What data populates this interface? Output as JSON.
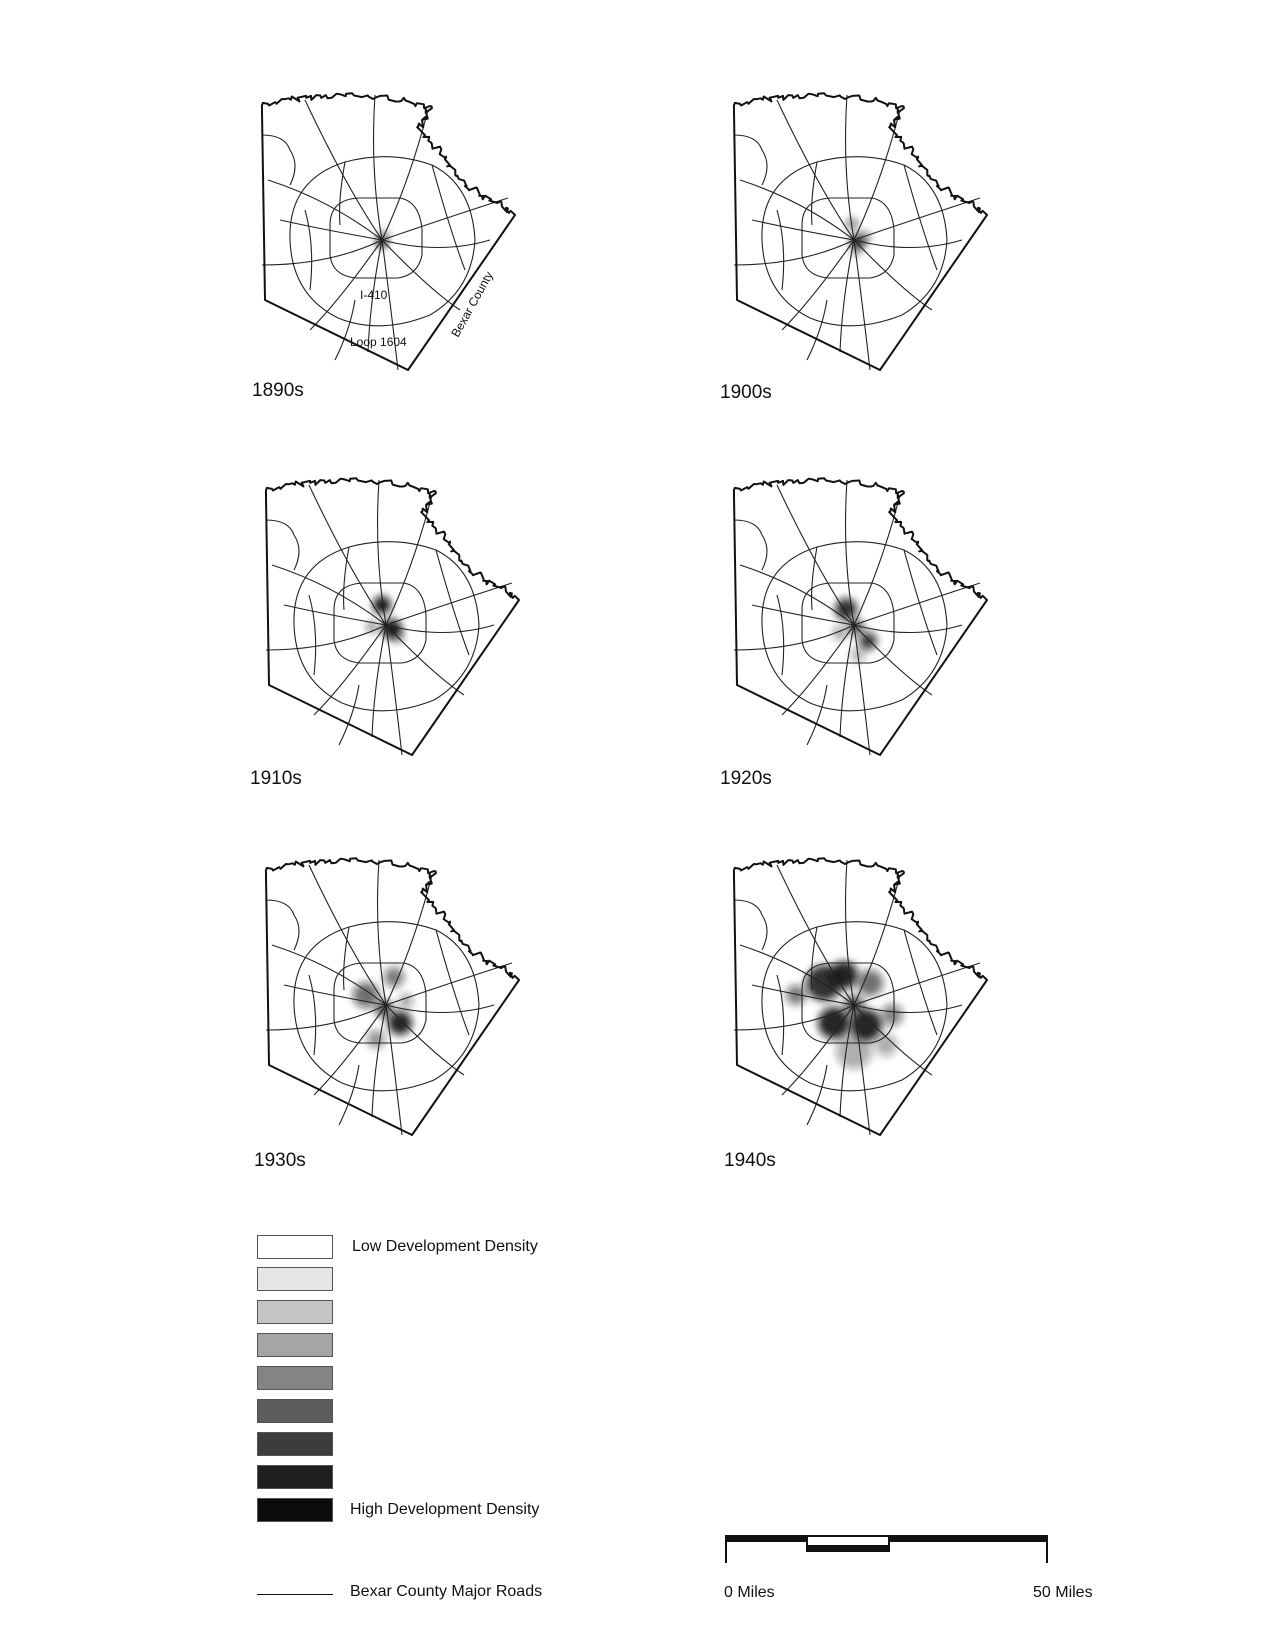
{
  "map_labels": {
    "i410": "I-410",
    "loop1604": "Loop 1604",
    "county": "Bexar County"
  },
  "panels": [
    {
      "decade": "1890s",
      "blobs": [
        {
          "dx": 0,
          "dy": 2,
          "r": 6,
          "o": 0.9
        },
        {
          "dx": 2,
          "dy": -6,
          "r": 5,
          "o": 0.35
        }
      ]
    },
    {
      "decade": "1900s",
      "blobs": [
        {
          "dx": -2,
          "dy": -16,
          "r": 6,
          "o": 0.55
        },
        {
          "dx": 4,
          "dy": 2,
          "r": 8,
          "o": 0.85
        },
        {
          "dx": 12,
          "dy": -4,
          "r": 5,
          "o": 0.4
        },
        {
          "dx": 2,
          "dy": 12,
          "r": 5,
          "o": 0.3
        }
      ]
    },
    {
      "decade": "1910s",
      "blobs": [
        {
          "dx": -4,
          "dy": -20,
          "r": 9,
          "o": 0.95
        },
        {
          "dx": 6,
          "dy": 4,
          "r": 10,
          "o": 0.95
        },
        {
          "dx": -14,
          "dy": 2,
          "r": 6,
          "o": 0.45
        },
        {
          "dx": 12,
          "dy": 12,
          "r": 6,
          "o": 0.4
        }
      ]
    },
    {
      "decade": "1920s",
      "blobs": [
        {
          "dx": -8,
          "dy": -16,
          "r": 11,
          "o": 0.85
        },
        {
          "dx": 2,
          "dy": 2,
          "r": 8,
          "o": 0.7
        },
        {
          "dx": 14,
          "dy": 16,
          "r": 9,
          "o": 0.8
        },
        {
          "dx": -14,
          "dy": 8,
          "r": 7,
          "o": 0.4
        },
        {
          "dx": 4,
          "dy": 30,
          "r": 7,
          "o": 0.35
        }
      ]
    },
    {
      "decade": "1930s",
      "blobs": [
        {
          "dx": -20,
          "dy": -10,
          "r": 13,
          "o": 0.6
        },
        {
          "dx": 8,
          "dy": -28,
          "r": 10,
          "o": 0.55
        },
        {
          "dx": 14,
          "dy": 18,
          "r": 12,
          "o": 0.9
        },
        {
          "dx": -2,
          "dy": 4,
          "r": 9,
          "o": 0.7
        },
        {
          "dx": -10,
          "dy": 34,
          "r": 9,
          "o": 0.45
        },
        {
          "dx": 20,
          "dy": -4,
          "r": 7,
          "o": 0.4
        }
      ]
    },
    {
      "decade": "1940s",
      "blobs": [
        {
          "dx": -30,
          "dy": -22,
          "r": 18,
          "o": 0.85
        },
        {
          "dx": -10,
          "dy": -30,
          "r": 14,
          "o": 0.9
        },
        {
          "dx": 16,
          "dy": -22,
          "r": 13,
          "o": 0.6
        },
        {
          "dx": -58,
          "dy": -10,
          "r": 10,
          "o": 0.55
        },
        {
          "dx": -20,
          "dy": 18,
          "r": 16,
          "o": 0.9
        },
        {
          "dx": 12,
          "dy": 20,
          "r": 16,
          "o": 0.9
        },
        {
          "dx": 38,
          "dy": 10,
          "r": 11,
          "o": 0.5
        },
        {
          "dx": 0,
          "dy": 46,
          "r": 18,
          "o": 0.35
        },
        {
          "dx": 32,
          "dy": 40,
          "r": 11,
          "o": 0.35
        },
        {
          "dx": 0,
          "dy": 0,
          "r": 10,
          "o": 0.7
        }
      ]
    }
  ],
  "legend": {
    "items": [
      {
        "label": "Low Development Density",
        "color": "#ffffff"
      },
      {
        "label": "",
        "color": "#e4e5e4"
      },
      {
        "label": "",
        "color": "#c3c5c4"
      },
      {
        "label": "",
        "color": "#a3a6a5"
      },
      {
        "label": "",
        "color": "#828584"
      },
      {
        "label": "",
        "color": "#5b5e5d"
      },
      {
        "label": "",
        "color": "#3b3d3c"
      },
      {
        "label": "",
        "color": "#1e1f1f"
      },
      {
        "label": "High Development Density",
        "color": "#0b0b0b"
      }
    ],
    "roads_label": "Bexar County Major Roads"
  },
  "scale": {
    "start": "0 Miles",
    "end": "50 Miles"
  }
}
